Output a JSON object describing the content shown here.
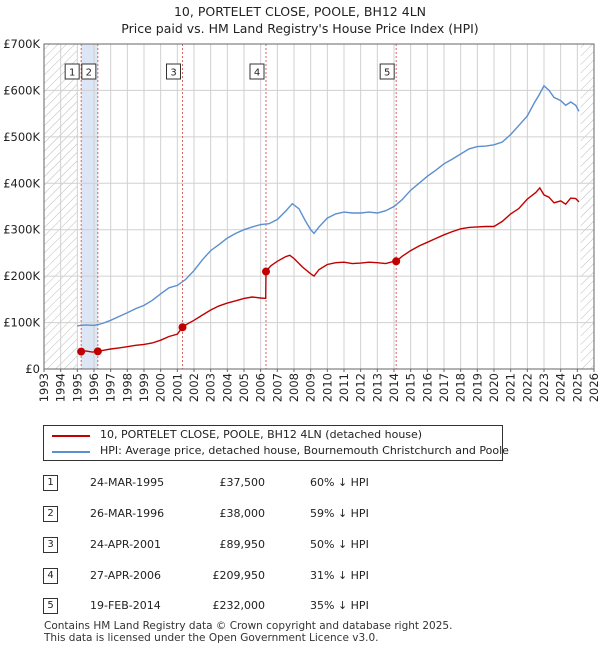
{
  "title_line1": "10, PORTELET CLOSE, POOLE, BH12 4LN",
  "title_line2": "Price paid vs. HM Land Registry's House Price Index (HPI)",
  "legend": {
    "property_label": "10, PORTELET CLOSE, POOLE, BH12 4LN (detached house)",
    "hpi_label": "HPI: Average price, detached house, Bournemouth Christchurch and Poole"
  },
  "colors": {
    "property": "#c00000",
    "hpi": "#5b8fd0",
    "shade": "#dde6f5",
    "grid": "#d0d0d0",
    "marker_line": "#e06060"
  },
  "chart_data": {
    "type": "line",
    "title": "Price paid vs. HM Land Registry's House Price Index (HPI)",
    "xlim": [
      1993,
      2026
    ],
    "ylim": [
      0,
      700000
    ],
    "y_ticks": [
      0,
      100000,
      200000,
      300000,
      400000,
      500000,
      600000,
      700000
    ],
    "y_tick_labels": [
      "£0",
      "£100K",
      "£200K",
      "£300K",
      "£400K",
      "£500K",
      "£600K",
      "£700K"
    ],
    "x_ticks": [
      1993,
      1994,
      1995,
      1996,
      1997,
      1998,
      1999,
      2000,
      2001,
      2002,
      2003,
      2004,
      2005,
      2006,
      2007,
      2008,
      2009,
      2010,
      2011,
      2012,
      2013,
      2014,
      2015,
      2016,
      2017,
      2018,
      2019,
      2020,
      2021,
      2022,
      2023,
      2024,
      2025,
      2026
    ],
    "x_tick_labels": [
      "1993",
      "1994",
      "1995",
      "1996",
      "1997",
      "1998",
      "1999",
      "2000",
      "2001",
      "2002",
      "2003",
      "2004",
      "2005",
      "2006",
      "2007",
      "2008",
      "2009",
      "2010",
      "2011",
      "2012",
      "2013",
      "2014",
      "2015",
      "2016",
      "2017",
      "2018",
      "2019",
      "2020",
      "2021",
      "2022",
      "2023",
      "2024",
      "2025",
      "2026"
    ],
    "hatch_before": 1995.0,
    "hatch_after": 2025.2,
    "shaded_spans": [
      [
        1995.23,
        1996.23
      ]
    ],
    "series": [
      {
        "name": "10, PORTELET CLOSE, POOLE, BH12 4LN (detached house)",
        "x": [
          1995.23,
          1995.5,
          1995.9,
          1996.23,
          1996.6,
          1997.0,
          1997.5,
          1998.0,
          1998.5,
          1999.0,
          1999.5,
          2000.0,
          2000.5,
          2001.0,
          2001.31,
          2001.5,
          2002.0,
          2002.5,
          2003.0,
          2003.5,
          2004.0,
          2004.5,
          2005.0,
          2005.5,
          2006.0,
          2006.3,
          2006.32,
          2006.6,
          2007.0,
          2007.5,
          2007.75,
          2008.0,
          2008.5,
          2009.0,
          2009.2,
          2009.5,
          2010.0,
          2010.5,
          2011.0,
          2011.5,
          2012.0,
          2012.5,
          2013.0,
          2013.5,
          2014.0,
          2014.13,
          2014.5,
          2015.0,
          2015.5,
          2016.0,
          2016.5,
          2017.0,
          2017.5,
          2018.0,
          2018.5,
          2019.0,
          2019.5,
          2020.0,
          2020.5,
          2021.0,
          2021.5,
          2022.0,
          2022.5,
          2022.75,
          2023.0,
          2023.3,
          2023.6,
          2024.0,
          2024.3,
          2024.6,
          2024.9,
          2025.1
        ],
        "values": [
          37500,
          39000,
          36500,
          38000,
          40500,
          43000,
          45500,
          48000,
          51000,
          53000,
          56000,
          62000,
          70000,
          75000,
          89950,
          95000,
          105000,
          116000,
          127000,
          136000,
          142000,
          147000,
          152000,
          155000,
          153000,
          152000,
          209950,
          222000,
          232000,
          242000,
          245000,
          238000,
          220000,
          205000,
          200000,
          214000,
          225000,
          229000,
          230000,
          227000,
          228000,
          230000,
          229000,
          227000,
          232000,
          232000,
          243000,
          255000,
          265000,
          273000,
          281000,
          289000,
          296000,
          302000,
          305000,
          306000,
          307000,
          307000,
          318000,
          334000,
          346000,
          366000,
          380000,
          390000,
          375000,
          370000,
          358000,
          362000,
          355000,
          368000,
          367000,
          360000
        ]
      },
      {
        "name": "HPI: Average price, detached house, Bournemouth Christchurch and Poole",
        "x": [
          1995.0,
          1995.5,
          1996.0,
          1996.5,
          1997.0,
          1997.5,
          1998.0,
          1998.5,
          1999.0,
          1999.5,
          2000.0,
          2000.5,
          2001.0,
          2001.5,
          2002.0,
          2002.5,
          2003.0,
          2003.5,
          2004.0,
          2004.5,
          2005.0,
          2005.5,
          2006.0,
          2006.5,
          2007.0,
          2007.5,
          2007.9,
          2008.3,
          2008.7,
          2009.0,
          2009.2,
          2009.5,
          2010.0,
          2010.5,
          2011.0,
          2011.5,
          2012.0,
          2012.5,
          2013.0,
          2013.5,
          2014.0,
          2014.5,
          2015.0,
          2015.5,
          2016.0,
          2016.5,
          2017.0,
          2017.5,
          2018.0,
          2018.5,
          2019.0,
          2019.5,
          2020.0,
          2020.5,
          2021.0,
          2021.5,
          2022.0,
          2022.4,
          2022.7,
          2023.0,
          2023.3,
          2023.6,
          2024.0,
          2024.3,
          2024.6,
          2024.9,
          2025.1
        ],
        "values": [
          93000,
          95000,
          94000,
          98000,
          105000,
          113000,
          121000,
          130000,
          137000,
          148000,
          162000,
          175000,
          180000,
          193000,
          212000,
          235000,
          255000,
          268000,
          282000,
          292000,
          300000,
          306000,
          311000,
          313000,
          322000,
          340000,
          356000,
          345000,
          318000,
          300000,
          292000,
          306000,
          325000,
          334000,
          338000,
          336000,
          336000,
          338000,
          336000,
          341000,
          350000,
          365000,
          385000,
          400000,
          415000,
          428000,
          442000,
          452000,
          463000,
          474000,
          479000,
          480000,
          483000,
          489000,
          505000,
          525000,
          545000,
          572000,
          590000,
          610000,
          600000,
          585000,
          578000,
          568000,
          575000,
          568000,
          555000
        ]
      }
    ],
    "sales": [
      {
        "label": "1",
        "date": "24-MAR-1995",
        "price": "£37,500",
        "hpi": "60% ↓ HPI",
        "x": 1995.23,
        "value": 37500
      },
      {
        "label": "2",
        "date": "26-MAR-1996",
        "price": "£38,000",
        "hpi": "59% ↓ HPI",
        "x": 1996.23,
        "value": 38000
      },
      {
        "label": "3",
        "date": "24-APR-2001",
        "price": "£89,950",
        "hpi": "50% ↓ HPI",
        "x": 2001.31,
        "value": 89950
      },
      {
        "label": "4",
        "date": "27-APR-2006",
        "price": "£209,950",
        "hpi": "31% ↓ HPI",
        "x": 2006.32,
        "value": 209950
      },
      {
        "label": "5",
        "date": "19-FEB-2014",
        "price": "£232,000",
        "hpi": "35% ↓ HPI",
        "x": 2014.13,
        "value": 232000
      }
    ]
  },
  "footer_line1": "Contains HM Land Registry data © Crown copyright and database right 2025.",
  "footer_line2": "This data is licensed under the Open Government Licence v3.0."
}
